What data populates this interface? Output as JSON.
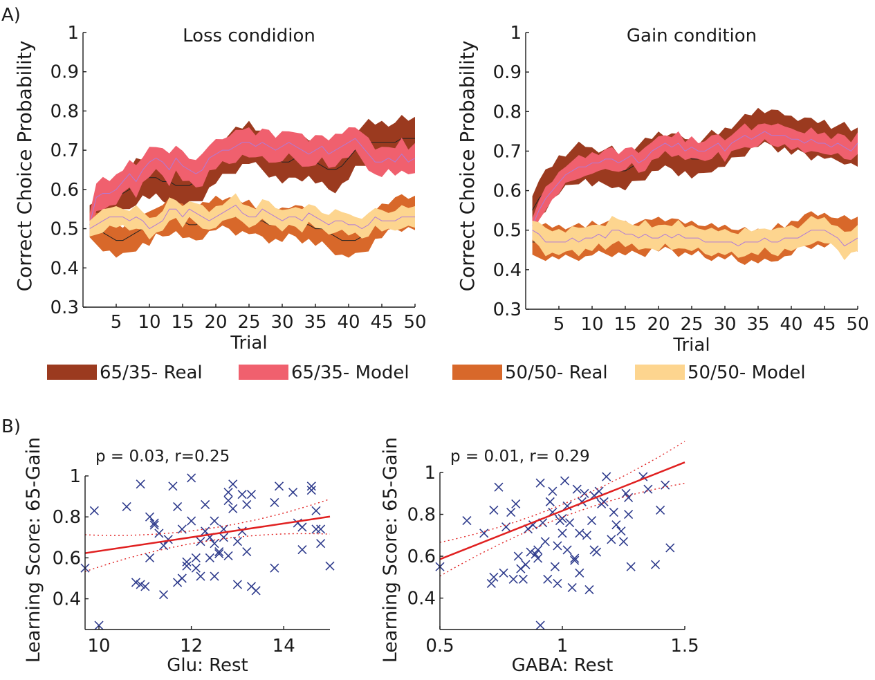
{
  "panel_a_label": "A)",
  "panel_b_label": "B)",
  "legend": [
    {
      "label": "65/35- Real",
      "color": "#9b3a1f"
    },
    {
      "label": "65/35- Model",
      "color": "#f0606e"
    },
    {
      "label": "50/50- Real",
      "color": "#d8682a"
    },
    {
      "label": "50/50- Model",
      "color": "#fdd58f"
    }
  ],
  "colors": {
    "real_line": "#222222",
    "model_line": "#b07ad8",
    "scatter_marker": "#2e3b8c",
    "fit_line": "#e02020"
  },
  "chart_data": [
    {
      "type": "line",
      "subtype": "band",
      "title": "Loss condidion",
      "xlabel": "Trial",
      "ylabel": "Correct Choice Probability",
      "xlim": [
        0,
        50
      ],
      "ylim": [
        0.3,
        1.0
      ],
      "xticks": [
        5,
        10,
        15,
        20,
        25,
        30,
        35,
        40,
        45,
        50
      ],
      "yticks": [
        0.3,
        0.4,
        0.5,
        0.6,
        0.7,
        0.8,
        0.9,
        1
      ],
      "ytick_labels": [
        "0.3",
        "0.4",
        "0.5",
        "0.6",
        "0.7",
        "0.8",
        "0.9",
        "1"
      ],
      "series": [
        {
          "name": "65/35- Real",
          "band_width": 0.05,
          "values": [
            0.52,
            0.52,
            0.55,
            0.57,
            0.58,
            0.59,
            0.6,
            0.62,
            0.63,
            0.63,
            0.63,
            0.62,
            0.62,
            0.61,
            0.61,
            0.61,
            0.62,
            0.63,
            0.65,
            0.67,
            0.68,
            0.69,
            0.7,
            0.71,
            0.72,
            0.71,
            0.7,
            0.69,
            0.68,
            0.67,
            0.67,
            0.68,
            0.68,
            0.68,
            0.67,
            0.66,
            0.65,
            0.65,
            0.66,
            0.68,
            0.7,
            0.71,
            0.72,
            0.72,
            0.72,
            0.72,
            0.72,
            0.73,
            0.73,
            0.73
          ]
        },
        {
          "name": "65/35- Model",
          "band_width": 0.035,
          "values": [
            0.51,
            0.58,
            0.59,
            0.59,
            0.6,
            0.62,
            0.64,
            0.62,
            0.65,
            0.67,
            0.68,
            0.67,
            0.65,
            0.68,
            0.66,
            0.65,
            0.64,
            0.65,
            0.68,
            0.69,
            0.7,
            0.7,
            0.71,
            0.72,
            0.72,
            0.71,
            0.72,
            0.71,
            0.7,
            0.71,
            0.72,
            0.71,
            0.7,
            0.69,
            0.7,
            0.71,
            0.69,
            0.7,
            0.71,
            0.72,
            0.73,
            0.71,
            0.69,
            0.67,
            0.67,
            0.68,
            0.67,
            0.69,
            0.67,
            0.68
          ]
        },
        {
          "name": "50/50- Real",
          "band_width": 0.04,
          "values": [
            0.51,
            0.5,
            0.49,
            0.48,
            0.47,
            0.47,
            0.48,
            0.49,
            0.5,
            0.5,
            0.52,
            0.52,
            0.53,
            0.53,
            0.52,
            0.51,
            0.51,
            0.52,
            0.53,
            0.54,
            0.54,
            0.54,
            0.53,
            0.53,
            0.53,
            0.52,
            0.52,
            0.51,
            0.51,
            0.51,
            0.52,
            0.52,
            0.51,
            0.51,
            0.5,
            0.5,
            0.49,
            0.48,
            0.47,
            0.47,
            0.47,
            0.48,
            0.49,
            0.51,
            0.52,
            0.53,
            0.54,
            0.54,
            0.54,
            0.54
          ]
        },
        {
          "name": "50/50- Model",
          "band_width": 0.025,
          "values": [
            0.5,
            0.51,
            0.52,
            0.53,
            0.53,
            0.53,
            0.52,
            0.53,
            0.52,
            0.5,
            0.51,
            0.52,
            0.55,
            0.55,
            0.53,
            0.55,
            0.54,
            0.53,
            0.52,
            0.53,
            0.54,
            0.55,
            0.56,
            0.54,
            0.53,
            0.53,
            0.55,
            0.54,
            0.53,
            0.52,
            0.53,
            0.53,
            0.52,
            0.54,
            0.53,
            0.52,
            0.51,
            0.52,
            0.52,
            0.51,
            0.51,
            0.5,
            0.51,
            0.53,
            0.52,
            0.52,
            0.52,
            0.53,
            0.53,
            0.53
          ]
        }
      ]
    },
    {
      "type": "line",
      "subtype": "band",
      "title": "Gain condition",
      "xlabel": "Trial",
      "ylabel": "Correct Choice Probability",
      "xlim": [
        0,
        50
      ],
      "ylim": [
        0.3,
        1.0
      ],
      "xticks": [
        5,
        10,
        15,
        20,
        25,
        30,
        35,
        40,
        45,
        50
      ],
      "yticks": [
        0.3,
        0.4,
        0.5,
        0.6,
        0.7,
        0.8,
        0.9,
        1
      ],
      "ytick_labels": [
        "0.3",
        "0.4",
        "0.5",
        "0.6",
        "0.7",
        "0.8",
        "0.9",
        "1"
      ],
      "series": [
        {
          "name": "65/35- Real",
          "band_width": 0.045,
          "values": [
            0.55,
            0.58,
            0.6,
            0.62,
            0.64,
            0.65,
            0.66,
            0.67,
            0.67,
            0.66,
            0.66,
            0.66,
            0.66,
            0.65,
            0.65,
            0.66,
            0.67,
            0.68,
            0.69,
            0.7,
            0.7,
            0.7,
            0.69,
            0.69,
            0.68,
            0.68,
            0.69,
            0.7,
            0.7,
            0.71,
            0.72,
            0.73,
            0.74,
            0.75,
            0.76,
            0.76,
            0.76,
            0.75,
            0.75,
            0.74,
            0.74,
            0.74,
            0.73,
            0.73,
            0.73,
            0.72,
            0.72,
            0.72,
            0.71,
            0.71
          ]
        },
        {
          "name": "65/35- Model",
          "band_width": 0.025,
          "values": [
            0.51,
            0.55,
            0.58,
            0.6,
            0.62,
            0.64,
            0.65,
            0.66,
            0.66,
            0.67,
            0.67,
            0.68,
            0.68,
            0.67,
            0.68,
            0.69,
            0.67,
            0.68,
            0.7,
            0.71,
            0.72,
            0.71,
            0.72,
            0.7,
            0.71,
            0.7,
            0.7,
            0.71,
            0.72,
            0.7,
            0.72,
            0.73,
            0.74,
            0.73,
            0.74,
            0.75,
            0.74,
            0.74,
            0.74,
            0.73,
            0.73,
            0.72,
            0.73,
            0.72,
            0.72,
            0.71,
            0.72,
            0.71,
            0.7,
            0.72
          ]
        },
        {
          "name": "50/50- Real",
          "band_width": 0.04,
          "values": [
            0.47,
            0.47,
            0.47,
            0.47,
            0.47,
            0.47,
            0.47,
            0.47,
            0.47,
            0.48,
            0.48,
            0.48,
            0.48,
            0.48,
            0.48,
            0.48,
            0.48,
            0.48,
            0.49,
            0.49,
            0.49,
            0.49,
            0.48,
            0.48,
            0.48,
            0.48,
            0.47,
            0.47,
            0.47,
            0.47,
            0.47,
            0.46,
            0.46,
            0.46,
            0.46,
            0.46,
            0.46,
            0.47,
            0.47,
            0.48,
            0.49,
            0.5,
            0.5,
            0.5,
            0.5,
            0.5,
            0.49,
            0.49,
            0.49,
            0.49
          ]
        },
        {
          "name": "50/50- Model",
          "band_width": 0.03,
          "values": [
            0.5,
            0.49,
            0.47,
            0.47,
            0.47,
            0.47,
            0.48,
            0.47,
            0.48,
            0.48,
            0.49,
            0.48,
            0.5,
            0.5,
            0.49,
            0.49,
            0.48,
            0.49,
            0.48,
            0.48,
            0.49,
            0.48,
            0.49,
            0.48,
            0.48,
            0.48,
            0.47,
            0.47,
            0.47,
            0.47,
            0.47,
            0.46,
            0.47,
            0.47,
            0.47,
            0.48,
            0.47,
            0.47,
            0.48,
            0.48,
            0.48,
            0.49,
            0.5,
            0.5,
            0.5,
            0.49,
            0.48,
            0.46,
            0.47,
            0.48
          ]
        }
      ]
    },
    {
      "type": "scatter",
      "annotation": "p = 0.03, r=0.25",
      "xlabel": "Glu: Rest",
      "ylabel": "Learning Score: 65-Gain",
      "xlim": [
        9.7,
        15.0
      ],
      "ylim": [
        0.25,
        1.0
      ],
      "xticks": [
        10,
        12,
        14
      ],
      "xtick_labels": [
        "10",
        "12",
        "14"
      ],
      "yticks": [
        0.4,
        0.6,
        0.8,
        1.0
      ],
      "ytick_labels": [
        "0.4",
        "0.6",
        "0.8",
        "1"
      ],
      "fit": {
        "intercept": 0.296,
        "slope": 0.0337,
        "ci_halfwidth_center": 0.03,
        "ci_halfwidth_edge": 0.09,
        "x_center": 12.4
      },
      "points": [
        [
          9.7,
          0.55
        ],
        [
          9.9,
          0.83
        ],
        [
          10.0,
          0.27
        ],
        [
          10.6,
          0.85
        ],
        [
          10.8,
          0.48
        ],
        [
          10.9,
          0.47
        ],
        [
          10.9,
          0.96
        ],
        [
          11.0,
          0.46
        ],
        [
          11.1,
          0.6
        ],
        [
          11.1,
          0.8
        ],
        [
          11.2,
          0.77
        ],
        [
          11.2,
          0.76
        ],
        [
          11.3,
          0.72
        ],
        [
          11.4,
          0.42
        ],
        [
          11.4,
          0.66
        ],
        [
          11.5,
          0.69
        ],
        [
          11.6,
          0.95
        ],
        [
          11.7,
          0.48
        ],
        [
          11.7,
          0.85
        ],
        [
          11.8,
          0.5
        ],
        [
          11.8,
          0.74
        ],
        [
          11.9,
          0.56
        ],
        [
          11.9,
          0.58
        ],
        [
          12.0,
          0.99
        ],
        [
          12.0,
          0.78
        ],
        [
          12.1,
          0.6
        ],
        [
          12.1,
          0.55
        ],
        [
          12.2,
          0.51
        ],
        [
          12.2,
          0.68
        ],
        [
          12.3,
          0.73
        ],
        [
          12.3,
          0.86
        ],
        [
          12.4,
          0.7
        ],
        [
          12.4,
          0.6
        ],
        [
          12.5,
          0.51
        ],
        [
          12.5,
          0.78
        ],
        [
          12.5,
          0.67
        ],
        [
          12.6,
          0.62
        ],
        [
          12.6,
          0.63
        ],
        [
          12.7,
          0.74
        ],
        [
          12.7,
          0.7
        ],
        [
          12.8,
          0.92
        ],
        [
          12.8,
          0.88
        ],
        [
          12.8,
          0.61
        ],
        [
          12.9,
          0.96
        ],
        [
          12.9,
          0.84
        ],
        [
          13.0,
          0.47
        ],
        [
          13.0,
          0.68
        ],
        [
          13.1,
          0.91
        ],
        [
          13.1,
          0.73
        ],
        [
          13.2,
          0.86
        ],
        [
          13.2,
          0.63
        ],
        [
          13.3,
          0.46
        ],
        [
          13.3,
          0.91
        ],
        [
          13.4,
          0.44
        ],
        [
          13.8,
          0.55
        ],
        [
          13.8,
          0.87
        ],
        [
          13.9,
          0.95
        ],
        [
          14.2,
          0.92
        ],
        [
          14.3,
          0.77
        ],
        [
          14.4,
          0.75
        ],
        [
          14.4,
          0.64
        ],
        [
          14.6,
          0.95
        ],
        [
          14.6,
          0.93
        ],
        [
          14.7,
          0.83
        ],
        [
          14.7,
          0.74
        ],
        [
          14.8,
          0.67
        ],
        [
          14.8,
          0.74
        ],
        [
          15.0,
          0.56
        ]
      ]
    },
    {
      "type": "scatter",
      "annotation": "p = 0.01, r= 0.29",
      "xlabel": "GABA: Rest",
      "ylabel": "Learning Score: 65-Gain",
      "xlim": [
        0.5,
        1.5
      ],
      "ylim": [
        0.25,
        1.0
      ],
      "xticks": [
        0.5,
        1.0,
        1.5
      ],
      "xtick_labels": [
        "0.5",
        "1",
        "1.5"
      ],
      "yticks": [
        0.4,
        0.6,
        0.8,
        1.0
      ],
      "ytick_labels": [
        "0.4",
        "0.6",
        "0.8",
        "1"
      ],
      "fit": {
        "intercept": 0.354,
        "slope": 0.463,
        "ci_halfwidth_center": 0.03,
        "ci_halfwidth_edge": 0.1,
        "x_center": 0.96
      },
      "points": [
        [
          0.5,
          0.55
        ],
        [
          0.61,
          0.77
        ],
        [
          0.68,
          0.71
        ],
        [
          0.71,
          0.47
        ],
        [
          0.72,
          0.5
        ],
        [
          0.72,
          0.82
        ],
        [
          0.74,
          0.93
        ],
        [
          0.76,
          0.52
        ],
        [
          0.77,
          0.74
        ],
        [
          0.79,
          0.81
        ],
        [
          0.8,
          0.49
        ],
        [
          0.81,
          0.85
        ],
        [
          0.82,
          0.6
        ],
        [
          0.83,
          0.54
        ],
        [
          0.84,
          0.49
        ],
        [
          0.85,
          0.56
        ],
        [
          0.86,
          0.73
        ],
        [
          0.87,
          0.62
        ],
        [
          0.88,
          0.75
        ],
        [
          0.89,
          0.61
        ],
        [
          0.9,
          0.63
        ],
        [
          0.9,
          0.59
        ],
        [
          0.91,
          0.95
        ],
        [
          0.91,
          0.27
        ],
        [
          0.92,
          0.76
        ],
        [
          0.93,
          0.67
        ],
        [
          0.94,
          0.49
        ],
        [
          0.95,
          0.86
        ],
        [
          0.96,
          0.91
        ],
        [
          0.96,
          0.81
        ],
        [
          0.97,
          0.55
        ],
        [
          0.98,
          0.65
        ],
        [
          0.98,
          0.47
        ],
        [
          0.99,
          0.77
        ],
        [
          1.0,
          0.78
        ],
        [
          1.0,
          0.71
        ],
        [
          1.01,
          0.96
        ],
        [
          1.02,
          0.63
        ],
        [
          1.02,
          0.84
        ],
        [
          1.03,
          0.76
        ],
        [
          1.04,
          0.45
        ],
        [
          1.05,
          0.59
        ],
        [
          1.05,
          0.58
        ],
        [
          1.06,
          0.92
        ],
        [
          1.07,
          0.71
        ],
        [
          1.07,
          0.52
        ],
        [
          1.08,
          0.86
        ],
        [
          1.09,
          0.9
        ],
        [
          1.1,
          0.7
        ],
        [
          1.11,
          0.44
        ],
        [
          1.12,
          0.77
        ],
        [
          1.13,
          0.63
        ],
        [
          1.13,
          0.89
        ],
        [
          1.14,
          0.62
        ],
        [
          1.15,
          0.91
        ],
        [
          1.16,
          0.85
        ],
        [
          1.17,
          0.86
        ],
        [
          1.18,
          0.98
        ],
        [
          1.2,
          0.68
        ],
        [
          1.21,
          0.81
        ],
        [
          1.22,
          0.75
        ],
        [
          1.24,
          0.72
        ],
        [
          1.25,
          0.67
        ],
        [
          1.26,
          0.9
        ],
        [
          1.27,
          0.88
        ],
        [
          1.27,
          0.8
        ],
        [
          1.28,
          0.55
        ],
        [
          1.33,
          0.98
        ],
        [
          1.35,
          0.92
        ],
        [
          1.38,
          0.56
        ],
        [
          1.4,
          0.82
        ],
        [
          1.42,
          0.94
        ],
        [
          1.44,
          0.64
        ]
      ]
    }
  ]
}
